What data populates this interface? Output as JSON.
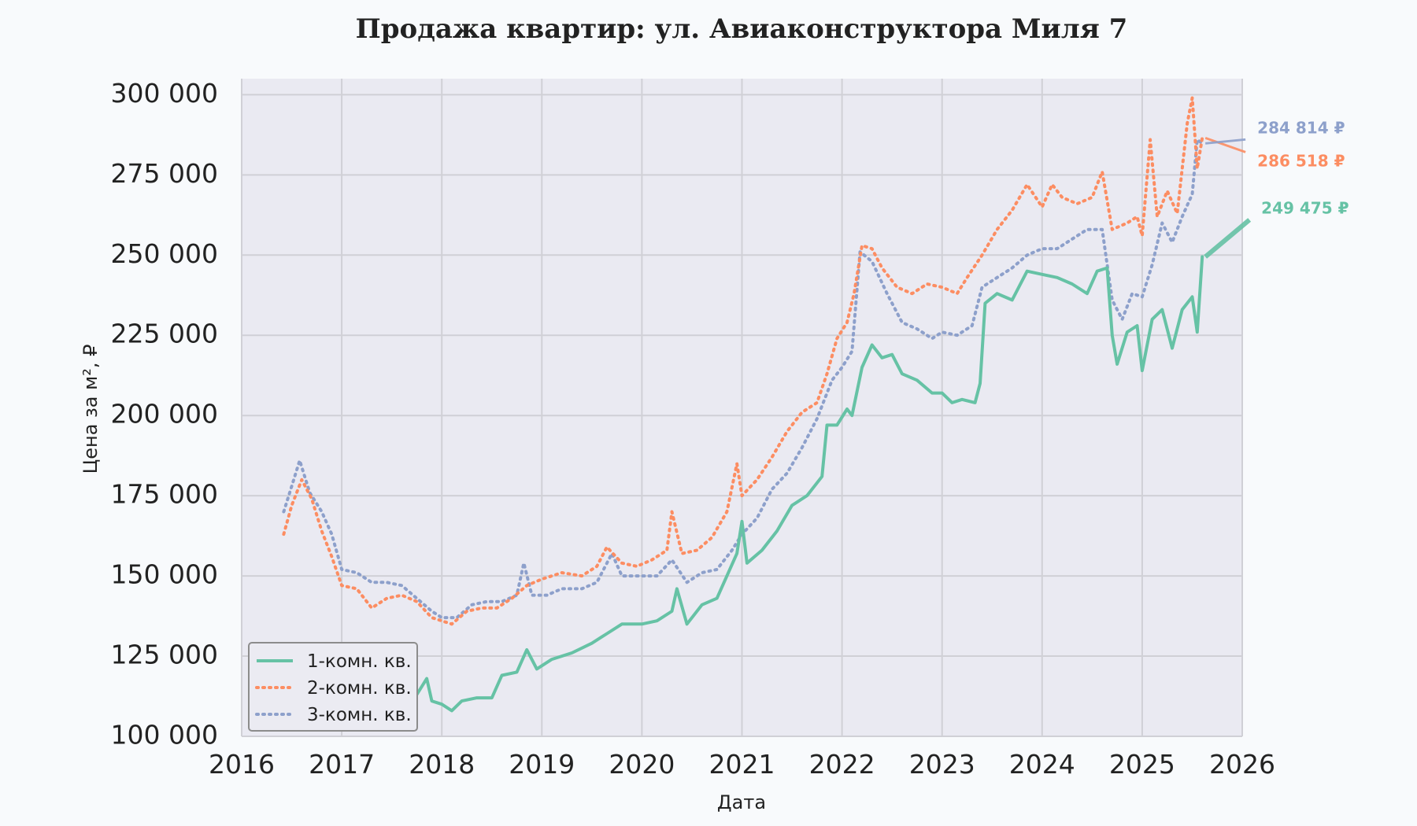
{
  "chart_data": {
    "type": "line",
    "title": "Продажа квартир: ул. Авиаконструктора Миля 7",
    "xlabel": "Дата",
    "ylabel": "Цена за м², ₽",
    "xlim": [
      2016,
      2026
    ],
    "ylim": [
      100000,
      305000
    ],
    "x_ticks": [
      "2016",
      "2017",
      "2018",
      "2019",
      "2020",
      "2021",
      "2022",
      "2023",
      "2024",
      "2025",
      "2026"
    ],
    "y_ticks": [
      {
        "value": 100000,
        "label": "100 000"
      },
      {
        "value": 125000,
        "label": "125 000"
      },
      {
        "value": 150000,
        "label": "150 000"
      },
      {
        "value": 175000,
        "label": "175 000"
      },
      {
        "value": 200000,
        "label": "200 000"
      },
      {
        "value": 225000,
        "label": "225 000"
      },
      {
        "value": 250000,
        "label": "250 000"
      },
      {
        "value": 275000,
        "label": "275 000"
      },
      {
        "value": 300000,
        "label": "300 000"
      }
    ],
    "grid": true,
    "legend_position": "bottom-left",
    "series": [
      {
        "name": "1-комн. кв.",
        "color": "#66c2a5",
        "style": "solid",
        "last_label": "249 475 ₽",
        "points": [
          [
            2016.42,
            123000
          ],
          [
            2016.55,
            125000
          ],
          [
            2016.75,
            122000
          ],
          [
            2016.95,
            120000
          ],
          [
            2017.15,
            119000
          ],
          [
            2017.35,
            117000
          ],
          [
            2017.55,
            115000
          ],
          [
            2017.75,
            113000
          ],
          [
            2017.85,
            118000
          ],
          [
            2017.9,
            111000
          ],
          [
            2018.0,
            110000
          ],
          [
            2018.1,
            108000
          ],
          [
            2018.2,
            111000
          ],
          [
            2018.35,
            112000
          ],
          [
            2018.5,
            112000
          ],
          [
            2018.6,
            119000
          ],
          [
            2018.75,
            120000
          ],
          [
            2018.85,
            127000
          ],
          [
            2018.95,
            121000
          ],
          [
            2019.1,
            124000
          ],
          [
            2019.3,
            126000
          ],
          [
            2019.5,
            129000
          ],
          [
            2019.65,
            132000
          ],
          [
            2019.8,
            135000
          ],
          [
            2020.0,
            135000
          ],
          [
            2020.15,
            136000
          ],
          [
            2020.3,
            139000
          ],
          [
            2020.35,
            146000
          ],
          [
            2020.45,
            135000
          ],
          [
            2020.6,
            141000
          ],
          [
            2020.75,
            143000
          ],
          [
            2020.85,
            150000
          ],
          [
            2020.95,
            157000
          ],
          [
            2021.0,
            167000
          ],
          [
            2021.05,
            154000
          ],
          [
            2021.2,
            158000
          ],
          [
            2021.35,
            164000
          ],
          [
            2021.5,
            172000
          ],
          [
            2021.65,
            175000
          ],
          [
            2021.8,
            181000
          ],
          [
            2021.85,
            197000
          ],
          [
            2021.95,
            197000
          ],
          [
            2022.05,
            202000
          ],
          [
            2022.1,
            200000
          ],
          [
            2022.2,
            215000
          ],
          [
            2022.3,
            222000
          ],
          [
            2022.4,
            218000
          ],
          [
            2022.5,
            219000
          ],
          [
            2022.6,
            213000
          ],
          [
            2022.75,
            211000
          ],
          [
            2022.9,
            207000
          ],
          [
            2023.0,
            207000
          ],
          [
            2023.1,
            204000
          ],
          [
            2023.2,
            205000
          ],
          [
            2023.33,
            204000
          ],
          [
            2023.38,
            210000
          ],
          [
            2023.43,
            235000
          ],
          [
            2023.55,
            238000
          ],
          [
            2023.7,
            236000
          ],
          [
            2023.85,
            245000
          ],
          [
            2024.0,
            244000
          ],
          [
            2024.15,
            243000
          ],
          [
            2024.3,
            241000
          ],
          [
            2024.45,
            238000
          ],
          [
            2024.55,
            245000
          ],
          [
            2024.65,
            246000
          ],
          [
            2024.7,
            225000
          ],
          [
            2024.75,
            216000
          ],
          [
            2024.85,
            226000
          ],
          [
            2024.95,
            228000
          ],
          [
            2025.0,
            214000
          ],
          [
            2025.1,
            230000
          ],
          [
            2025.2,
            233000
          ],
          [
            2025.3,
            221000
          ],
          [
            2025.4,
            233000
          ],
          [
            2025.5,
            237000
          ],
          [
            2025.55,
            226000
          ],
          [
            2025.6,
            249475
          ]
        ]
      },
      {
        "name": "2-комн. кв.",
        "color": "#fc8d62",
        "style": "dotted",
        "last_label": "286 518 ₽",
        "points": [
          [
            2016.42,
            163000
          ],
          [
            2016.5,
            172000
          ],
          [
            2016.6,
            180000
          ],
          [
            2016.7,
            174000
          ],
          [
            2016.8,
            164000
          ],
          [
            2016.9,
            156000
          ],
          [
            2017.0,
            147000
          ],
          [
            2017.15,
            146000
          ],
          [
            2017.3,
            140000
          ],
          [
            2017.45,
            143000
          ],
          [
            2017.6,
            144000
          ],
          [
            2017.75,
            142000
          ],
          [
            2017.9,
            137000
          ],
          [
            2018.0,
            136000
          ],
          [
            2018.1,
            135000
          ],
          [
            2018.25,
            139000
          ],
          [
            2018.4,
            140000
          ],
          [
            2018.55,
            140000
          ],
          [
            2018.7,
            143000
          ],
          [
            2018.85,
            147000
          ],
          [
            2019.0,
            149000
          ],
          [
            2019.2,
            151000
          ],
          [
            2019.4,
            150000
          ],
          [
            2019.55,
            153000
          ],
          [
            2019.65,
            159000
          ],
          [
            2019.8,
            154000
          ],
          [
            2019.95,
            153000
          ],
          [
            2020.1,
            155000
          ],
          [
            2020.25,
            158000
          ],
          [
            2020.3,
            170000
          ],
          [
            2020.4,
            157000
          ],
          [
            2020.55,
            158000
          ],
          [
            2020.7,
            162000
          ],
          [
            2020.85,
            170000
          ],
          [
            2020.95,
            185000
          ],
          [
            2021.0,
            175000
          ],
          [
            2021.15,
            180000
          ],
          [
            2021.3,
            187000
          ],
          [
            2021.45,
            195000
          ],
          [
            2021.6,
            201000
          ],
          [
            2021.75,
            204000
          ],
          [
            2021.85,
            213000
          ],
          [
            2021.95,
            224000
          ],
          [
            2022.05,
            229000
          ],
          [
            2022.12,
            238000
          ],
          [
            2022.2,
            253000
          ],
          [
            2022.3,
            252000
          ],
          [
            2022.4,
            246000
          ],
          [
            2022.55,
            240000
          ],
          [
            2022.7,
            238000
          ],
          [
            2022.85,
            241000
          ],
          [
            2023.0,
            240000
          ],
          [
            2023.15,
            238000
          ],
          [
            2023.25,
            243000
          ],
          [
            2023.4,
            250000
          ],
          [
            2023.55,
            258000
          ],
          [
            2023.7,
            264000
          ],
          [
            2023.85,
            272000
          ],
          [
            2024.0,
            265000
          ],
          [
            2024.1,
            272000
          ],
          [
            2024.2,
            268000
          ],
          [
            2024.35,
            266000
          ],
          [
            2024.5,
            268000
          ],
          [
            2024.6,
            276000
          ],
          [
            2024.7,
            258000
          ],
          [
            2024.85,
            260000
          ],
          [
            2024.95,
            262000
          ],
          [
            2025.0,
            256000
          ],
          [
            2025.08,
            286000
          ],
          [
            2025.15,
            262000
          ],
          [
            2025.25,
            270000
          ],
          [
            2025.35,
            263000
          ],
          [
            2025.45,
            291000
          ],
          [
            2025.5,
            299000
          ],
          [
            2025.55,
            277000
          ],
          [
            2025.6,
            286518
          ]
        ]
      },
      {
        "name": "3-комн. кв.",
        "color": "#8da0cb",
        "style": "dotted",
        "last_label": "284 814 ₽",
        "points": [
          [
            2016.42,
            170000
          ],
          [
            2016.5,
            178000
          ],
          [
            2016.58,
            186000
          ],
          [
            2016.68,
            176000
          ],
          [
            2016.8,
            170000
          ],
          [
            2016.9,
            163000
          ],
          [
            2017.0,
            152000
          ],
          [
            2017.15,
            151000
          ],
          [
            2017.3,
            148000
          ],
          [
            2017.45,
            148000
          ],
          [
            2017.6,
            147000
          ],
          [
            2017.75,
            143000
          ],
          [
            2017.9,
            139000
          ],
          [
            2018.0,
            137000
          ],
          [
            2018.15,
            137000
          ],
          [
            2018.3,
            141000
          ],
          [
            2018.45,
            142000
          ],
          [
            2018.6,
            142000
          ],
          [
            2018.75,
            144000
          ],
          [
            2018.82,
            154000
          ],
          [
            2018.9,
            144000
          ],
          [
            2019.05,
            144000
          ],
          [
            2019.2,
            146000
          ],
          [
            2019.4,
            146000
          ],
          [
            2019.55,
            148000
          ],
          [
            2019.7,
            157000
          ],
          [
            2019.8,
            150000
          ],
          [
            2019.95,
            150000
          ],
          [
            2020.15,
            150000
          ],
          [
            2020.3,
            155000
          ],
          [
            2020.45,
            148000
          ],
          [
            2020.6,
            151000
          ],
          [
            2020.75,
            152000
          ],
          [
            2020.9,
            158000
          ],
          [
            2021.0,
            163000
          ],
          [
            2021.15,
            168000
          ],
          [
            2021.3,
            177000
          ],
          [
            2021.45,
            182000
          ],
          [
            2021.6,
            190000
          ],
          [
            2021.75,
            199000
          ],
          [
            2021.9,
            211000
          ],
          [
            2022.0,
            215000
          ],
          [
            2022.1,
            220000
          ],
          [
            2022.18,
            251000
          ],
          [
            2022.3,
            248000
          ],
          [
            2022.45,
            238000
          ],
          [
            2022.6,
            229000
          ],
          [
            2022.75,
            227000
          ],
          [
            2022.9,
            224000
          ],
          [
            2023.0,
            226000
          ],
          [
            2023.15,
            225000
          ],
          [
            2023.3,
            228000
          ],
          [
            2023.4,
            240000
          ],
          [
            2023.55,
            243000
          ],
          [
            2023.7,
            246000
          ],
          [
            2023.85,
            250000
          ],
          [
            2024.0,
            252000
          ],
          [
            2024.15,
            252000
          ],
          [
            2024.3,
            255000
          ],
          [
            2024.45,
            258000
          ],
          [
            2024.6,
            258000
          ],
          [
            2024.7,
            236000
          ],
          [
            2024.8,
            230000
          ],
          [
            2024.9,
            238000
          ],
          [
            2025.0,
            237000
          ],
          [
            2025.1,
            247000
          ],
          [
            2025.2,
            260000
          ],
          [
            2025.3,
            254000
          ],
          [
            2025.4,
            262000
          ],
          [
            2025.5,
            269000
          ],
          [
            2025.55,
            286000
          ],
          [
            2025.6,
            284814
          ]
        ]
      }
    ]
  }
}
